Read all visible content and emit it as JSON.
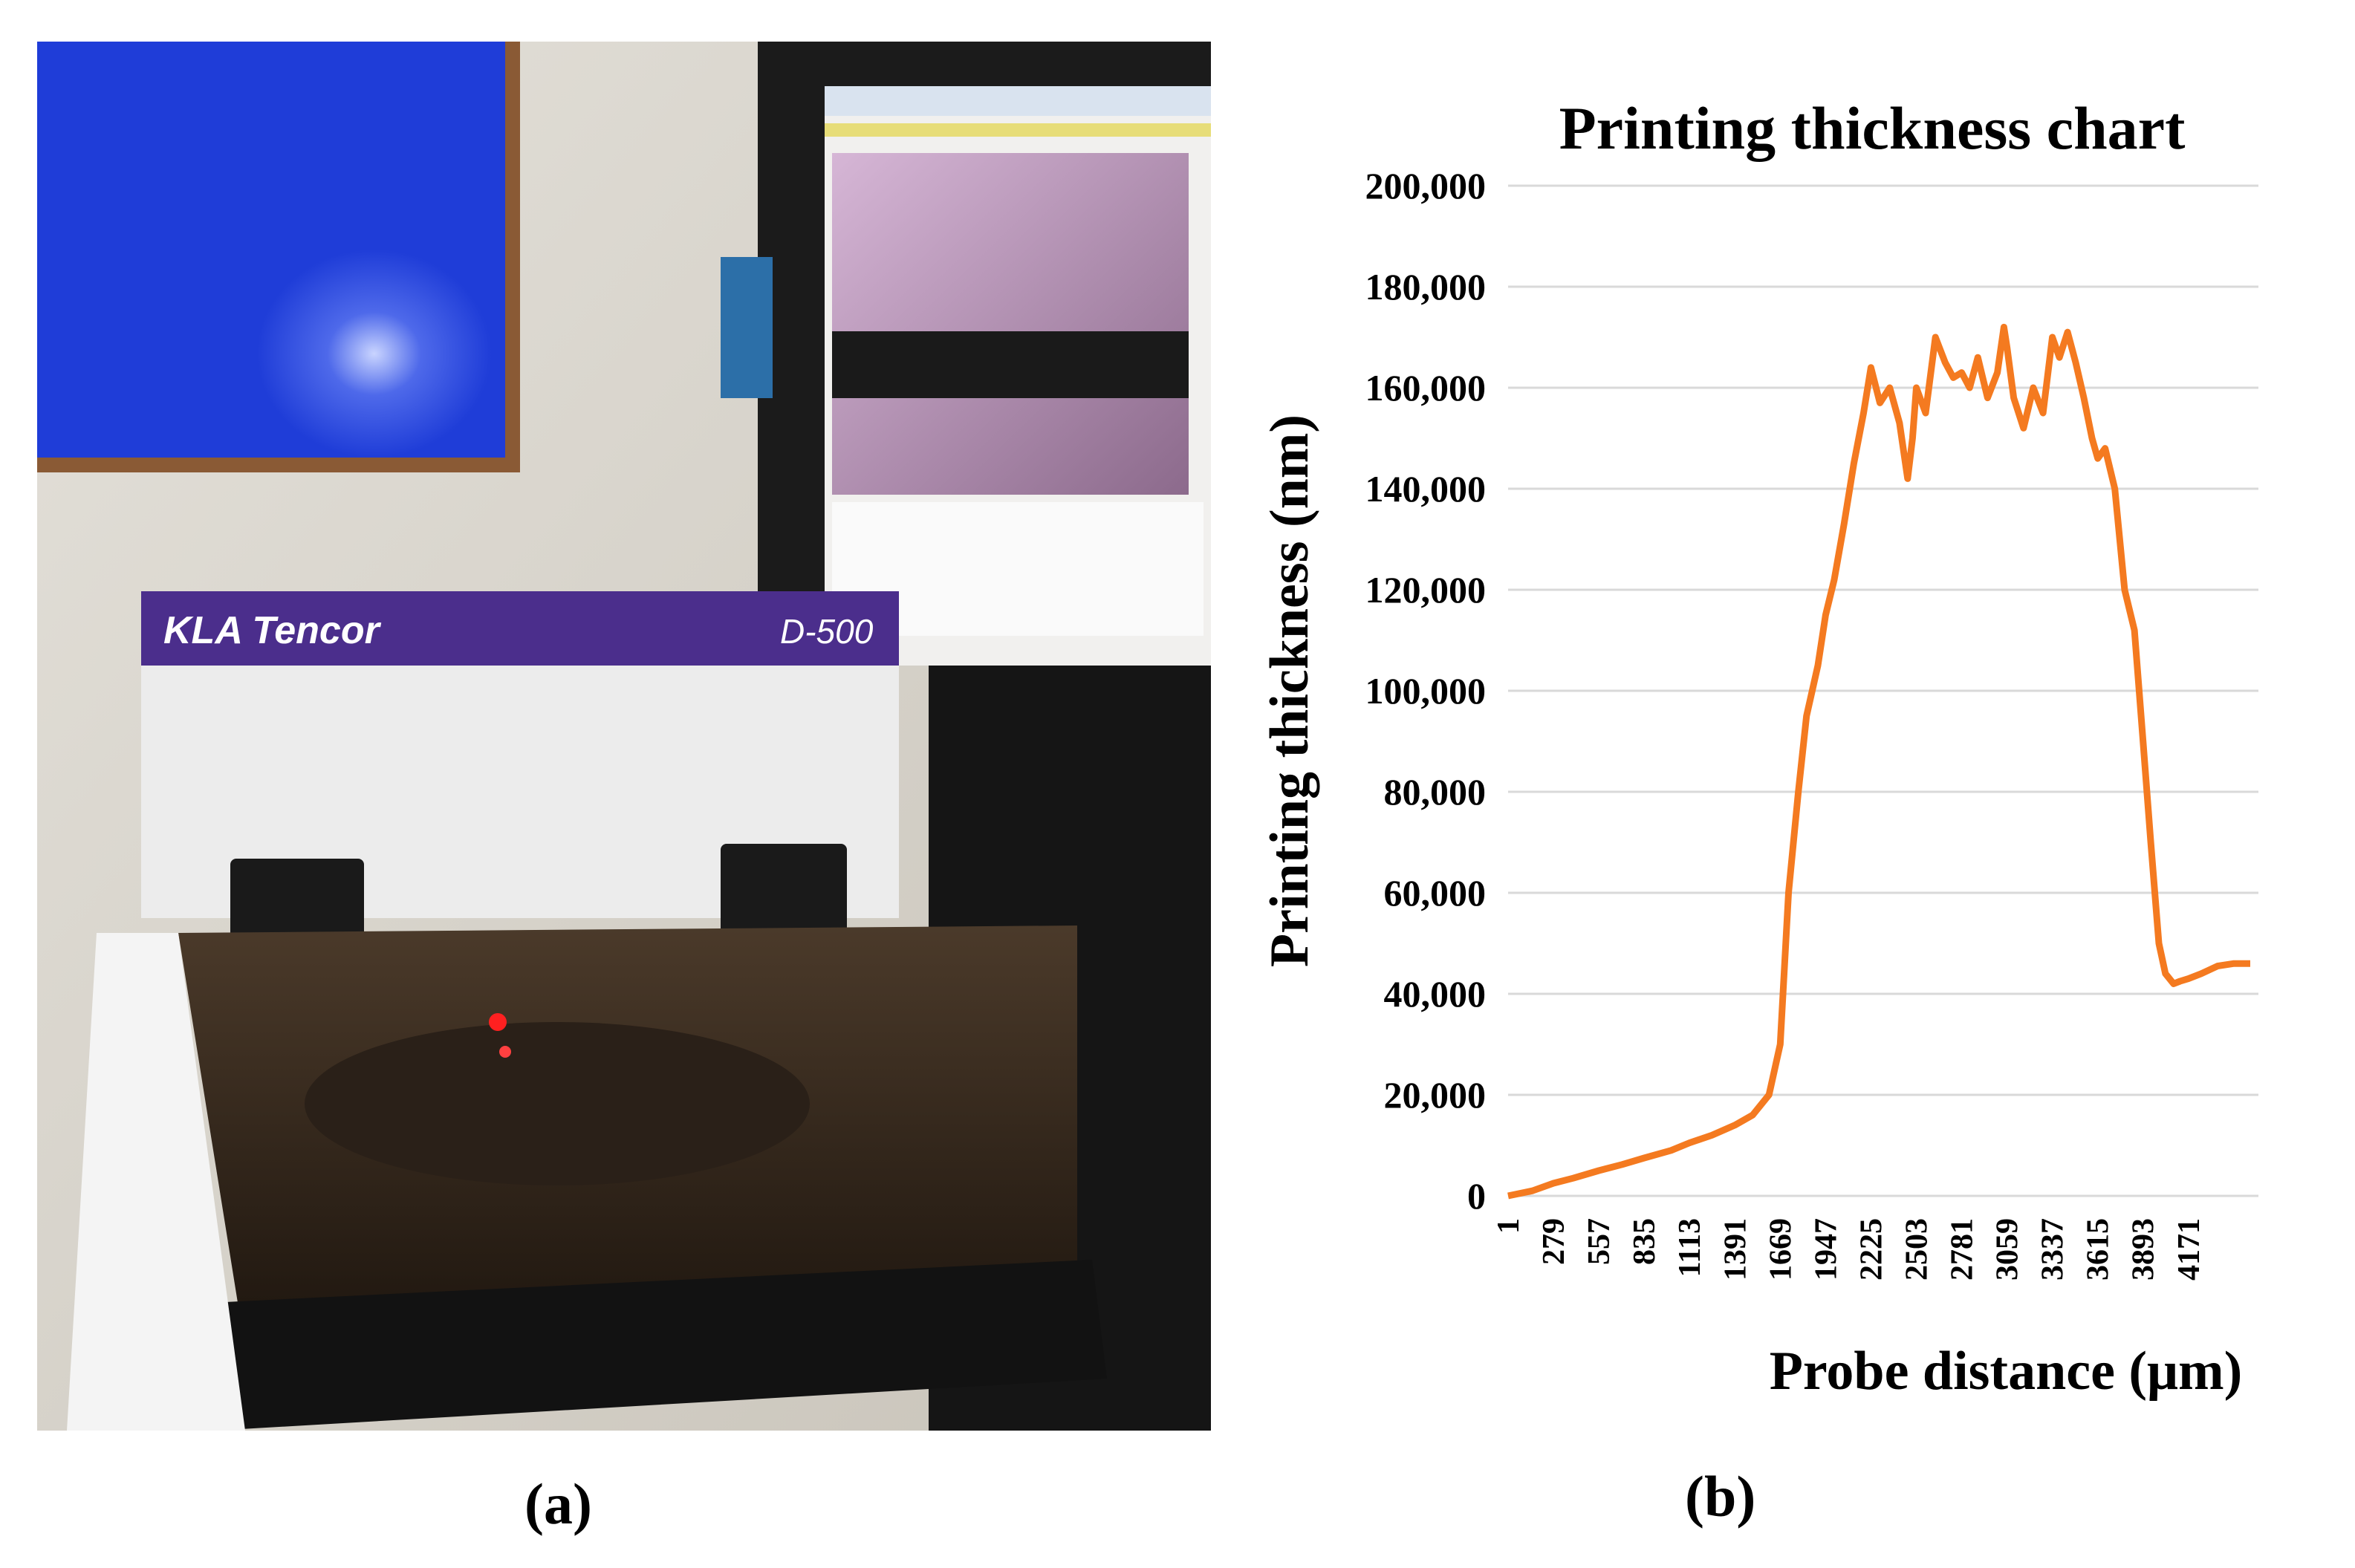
{
  "photo": {
    "brand_text": "KLA Tencor",
    "model_text": "D-500",
    "colors": {
      "wall": "#d7d3cb",
      "board": "#1f3dd8",
      "frame": "#8a5a35",
      "instrument_band": "#4b2e8c",
      "instrument_body": "#ececec",
      "cover_tint": "#3a2a1c"
    }
  },
  "labels": {
    "a": "(a)",
    "b": "(b)"
  },
  "chart_data": {
    "type": "line",
    "title": "Printing thickness chart",
    "xlabel": "Probe distance (μm)",
    "ylabel": "Printing thickness (nm)",
    "ylim": [
      0,
      200000
    ],
    "xlim": [
      1,
      4600
    ],
    "grid": true,
    "line_color": "#f47a20",
    "y_ticks": [
      "0",
      "20,000",
      "40,000",
      "60,000",
      "80,000",
      "100,000",
      "120,000",
      "140,000",
      "160,000",
      "180,000",
      "200,000"
    ],
    "x_ticks": [
      "1",
      "279",
      "557",
      "835",
      "1113",
      "1391",
      "1669",
      "1947",
      "2225",
      "2503",
      "2781",
      "3059",
      "3337",
      "3615",
      "3893",
      "4171"
    ],
    "series": [
      {
        "x": [
          1,
          150,
          279,
          400,
          557,
          700,
          835,
          1000,
          1113,
          1250,
          1391,
          1500,
          1600,
          1669,
          1720,
          1780,
          1830,
          1900,
          1947,
          2000,
          2060,
          2120,
          2180,
          2225,
          2280,
          2340,
          2400,
          2450,
          2480,
          2503,
          2560,
          2620,
          2680,
          2730,
          2781,
          2830,
          2880,
          2940,
          3000,
          3040,
          3059,
          3100,
          3160,
          3220,
          3280,
          3337,
          3380,
          3430,
          3480,
          3530,
          3580,
          3615,
          3660,
          3720,
          3780,
          3840,
          3893,
          3940,
          3990,
          4030,
          4080,
          4120,
          4171,
          4250,
          4350,
          4450,
          4550
        ],
        "y": [
          0,
          1000,
          2500,
          3500,
          5000,
          6200,
          7500,
          9000,
          10500,
          12000,
          14000,
          16000,
          20000,
          30000,
          60000,
          80000,
          95000,
          105000,
          115000,
          122000,
          133000,
          145000,
          155000,
          164000,
          157000,
          160000,
          153000,
          142000,
          150000,
          160000,
          155000,
          170000,
          165000,
          162000,
          163000,
          160000,
          166000,
          158000,
          163000,
          172000,
          168000,
          158000,
          152000,
          160000,
          155000,
          170000,
          166000,
          171000,
          165000,
          158000,
          150000,
          146000,
          148000,
          140000,
          120000,
          112000,
          90000,
          70000,
          50000,
          44000,
          42000,
          42500,
          43000,
          44000,
          45500,
          46000,
          46000
        ]
      }
    ]
  }
}
